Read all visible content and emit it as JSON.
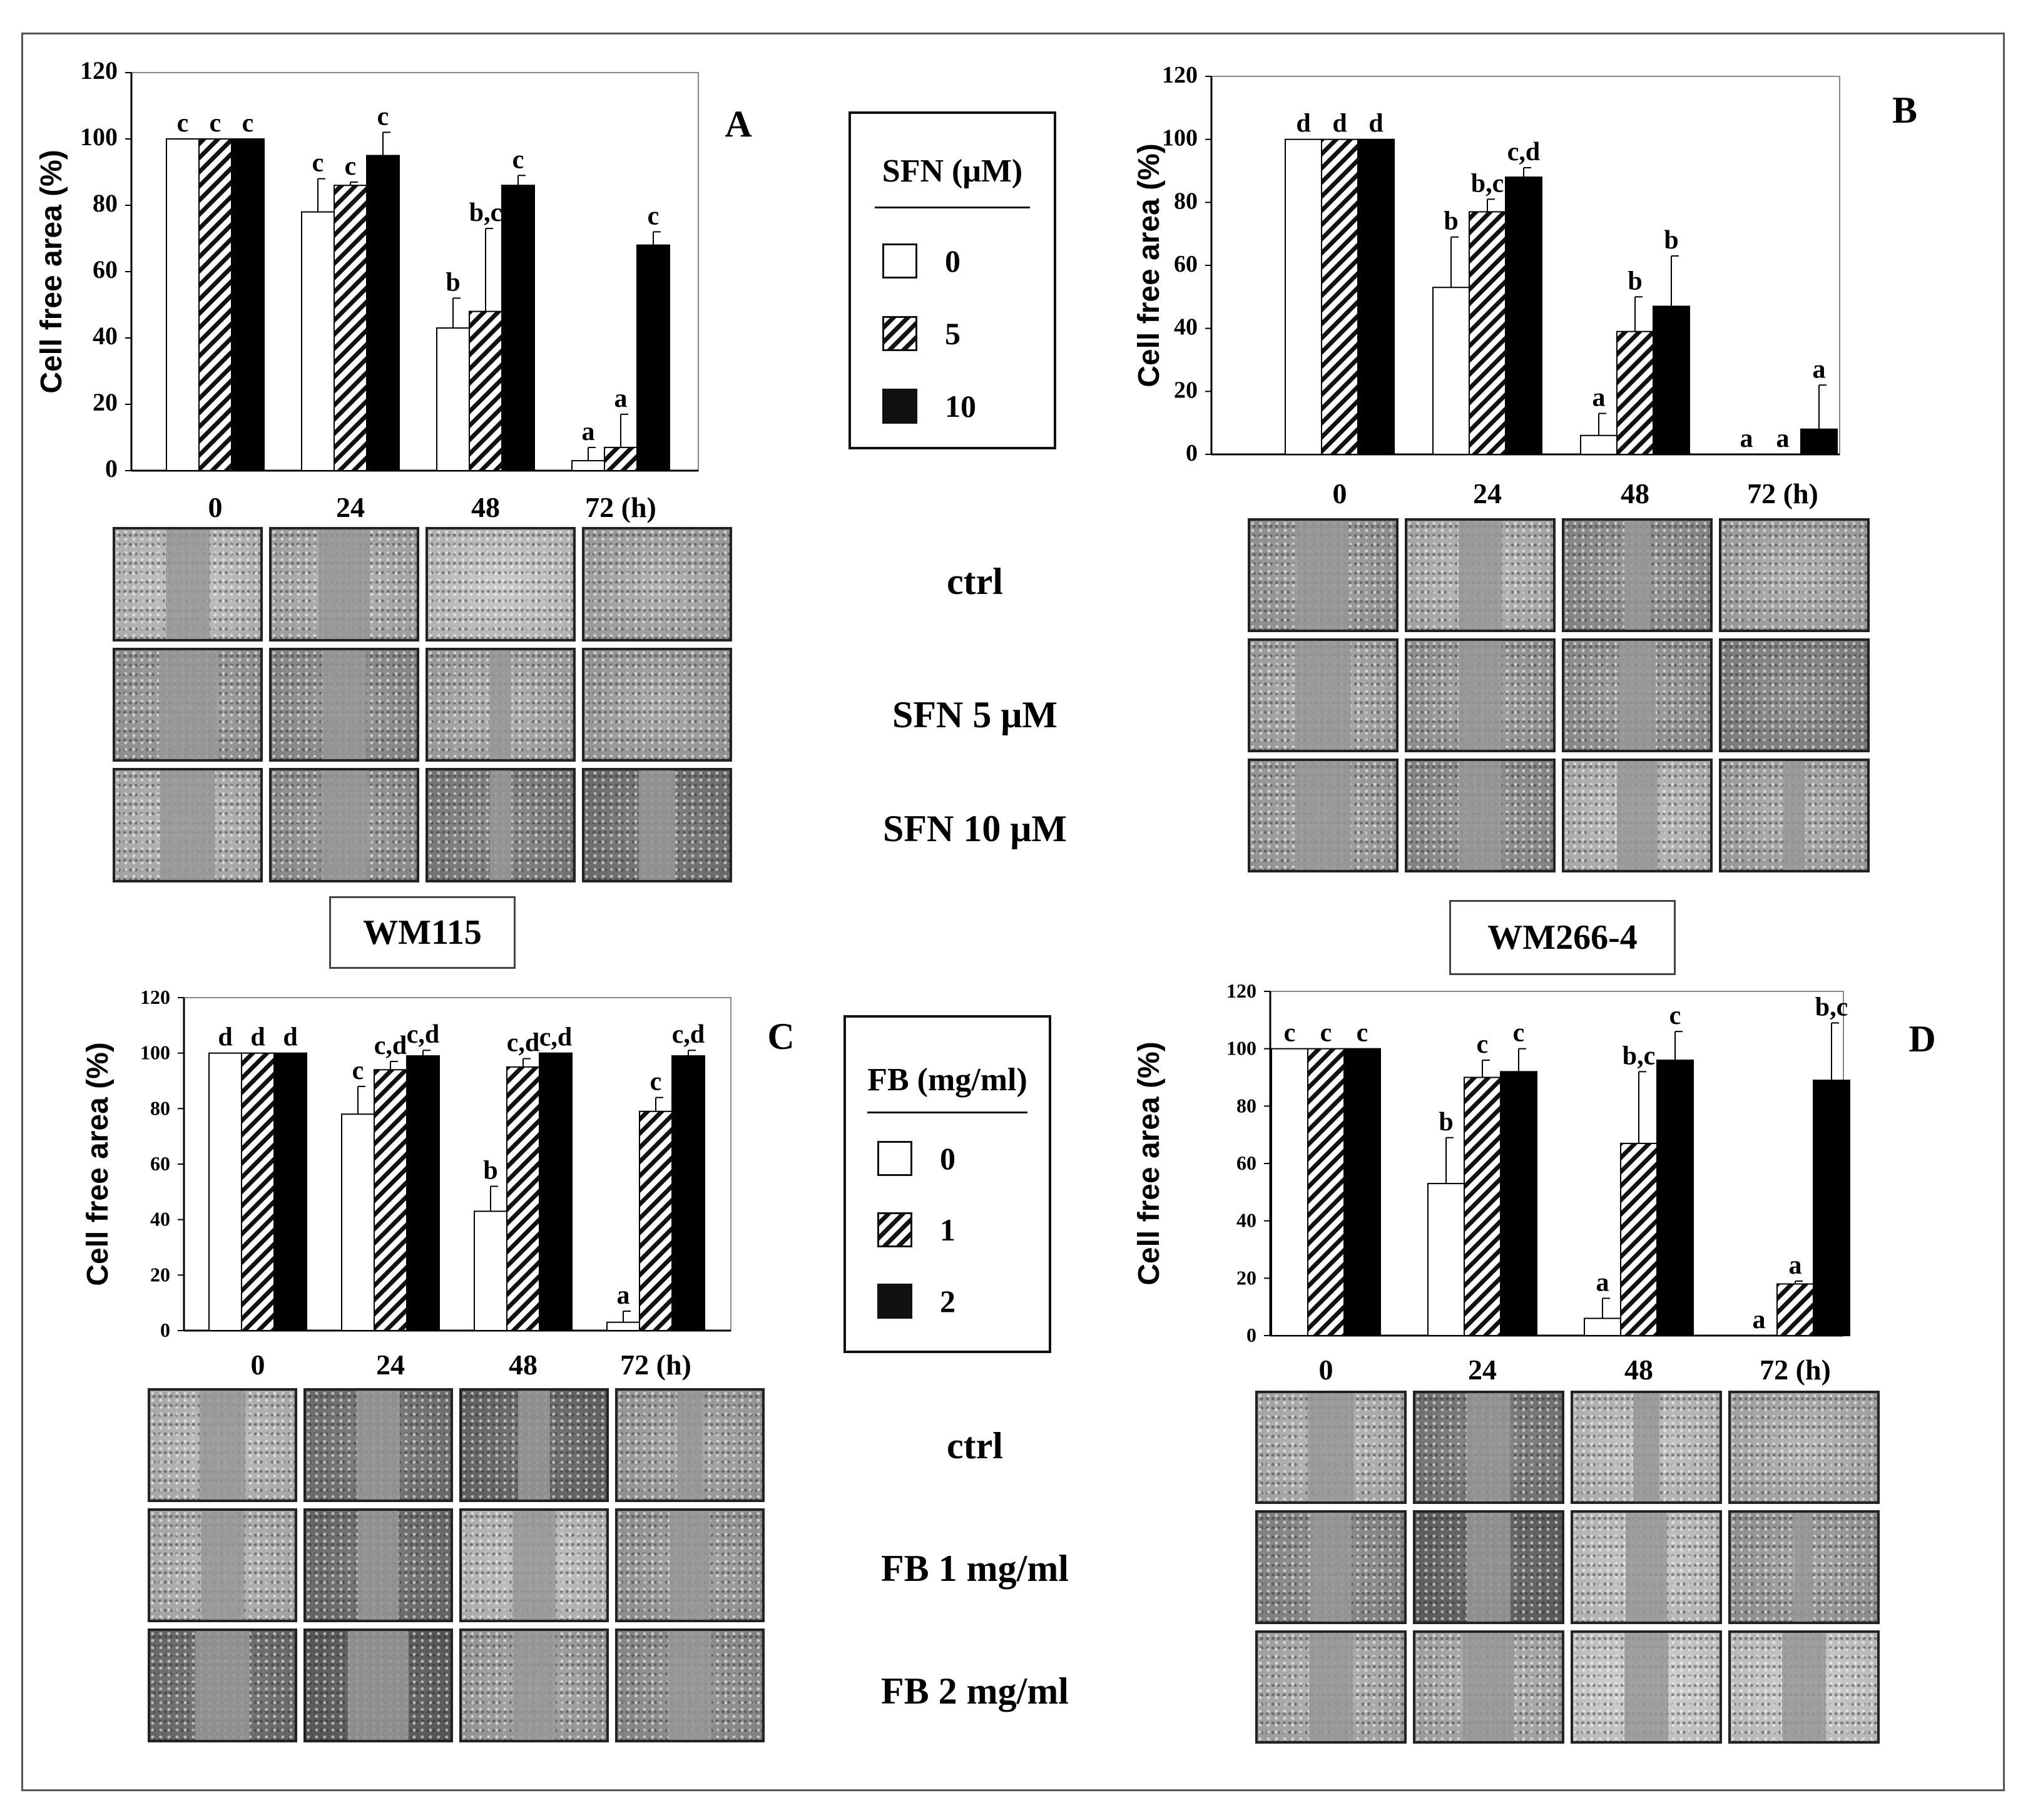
{
  "chart_data": [
    {
      "panel": "A",
      "type": "bar",
      "ylabel": "Cell free area (%)",
      "ylim": [
        0,
        120
      ],
      "yticks": [
        0,
        20,
        40,
        60,
        80,
        100,
        120
      ],
      "categories": [
        "0",
        "24",
        "48",
        "72 (h)"
      ],
      "series": [
        {
          "name": "0",
          "values": [
            100,
            78,
            43,
            3
          ],
          "errors": [
            0,
            10,
            9,
            4
          ],
          "labels": [
            "c",
            "c",
            "b",
            "a"
          ]
        },
        {
          "name": "5",
          "values": [
            100,
            86,
            48,
            7
          ],
          "errors": [
            0,
            1,
            25,
            10
          ],
          "labels": [
            "c",
            "c",
            "b,c",
            "a"
          ]
        },
        {
          "name": "10",
          "values": [
            100,
            95,
            86,
            68
          ],
          "errors": [
            0,
            7,
            3,
            4
          ],
          "labels": [
            "c",
            "c",
            "c",
            "c"
          ]
        }
      ]
    },
    {
      "panel": "B",
      "type": "bar",
      "ylabel": "Cell free area (%)",
      "ylim": [
        0,
        120
      ],
      "yticks": [
        0,
        20,
        40,
        60,
        80,
        100,
        120
      ],
      "categories": [
        "0",
        "24",
        "48",
        "72 (h)"
      ],
      "series": [
        {
          "name": "0",
          "values": [
            100,
            53,
            6,
            0
          ],
          "errors": [
            0,
            16,
            7,
            0
          ],
          "labels": [
            "d",
            "b",
            "a",
            "a"
          ]
        },
        {
          "name": "5",
          "values": [
            100,
            77,
            39,
            0
          ],
          "errors": [
            0,
            4,
            11,
            0
          ],
          "labels": [
            "d",
            "b,c",
            "b",
            "a"
          ]
        },
        {
          "name": "10",
          "values": [
            100,
            88,
            47,
            8
          ],
          "errors": [
            0,
            3,
            16,
            14
          ],
          "labels": [
            "d",
            "c,d",
            "b",
            "a"
          ]
        }
      ]
    },
    {
      "panel": "C",
      "type": "bar",
      "ylabel": "Cell free area (%)",
      "ylim": [
        0,
        120
      ],
      "yticks": [
        0,
        20,
        40,
        60,
        80,
        100,
        120
      ],
      "categories": [
        "0",
        "24",
        "48",
        "72 (h)"
      ],
      "series": [
        {
          "name": "0",
          "values": [
            100,
            78,
            43,
            3
          ],
          "errors": [
            0,
            10,
            9,
            4
          ],
          "labels": [
            "d",
            "c",
            "b",
            "a"
          ]
        },
        {
          "name": "1",
          "values": [
            100,
            94,
            95,
            79
          ],
          "errors": [
            0,
            3,
            3,
            5
          ],
          "labels": [
            "d",
            "c,d",
            "c,d",
            "c"
          ]
        },
        {
          "name": "2",
          "values": [
            100,
            99,
            100,
            99
          ],
          "errors": [
            0,
            2,
            0,
            2
          ],
          "labels": [
            "d",
            "c,d",
            "c,d",
            "c,d"
          ]
        }
      ]
    },
    {
      "panel": "D",
      "type": "bar",
      "ylabel": "Cell free area (%)",
      "ylim": [
        0,
        120
      ],
      "yticks": [
        0,
        20,
        40,
        60,
        80,
        100,
        120
      ],
      "categories": [
        "0",
        "24",
        "48",
        "72 (h)"
      ],
      "series": [
        {
          "name": "0",
          "values": [
            100,
            53,
            6,
            0
          ],
          "errors": [
            0,
            16,
            7,
            0
          ],
          "labels": [
            "c",
            "b",
            "a",
            "a"
          ]
        },
        {
          "name": "1",
          "values": [
            100,
            90,
            67,
            18
          ],
          "errors": [
            0,
            6,
            25,
            1
          ],
          "labels": [
            "c",
            "c",
            "b,c",
            "a"
          ]
        },
        {
          "name": "2",
          "values": [
            100,
            92,
            96,
            89
          ],
          "errors": [
            0,
            8,
            10,
            20
          ],
          "labels": [
            "c",
            "c",
            "c",
            "b,c"
          ]
        }
      ]
    }
  ],
  "legend_sfn": {
    "title": "SFN (μM)",
    "items": [
      "0",
      "5",
      "10"
    ]
  },
  "legend_fb": {
    "title": "FB (mg/ml)",
    "items": [
      "0",
      "1",
      "2"
    ]
  },
  "conditions_top": {
    "ctrl": "ctrl",
    "low": "SFN 5 μM",
    "high": "SFN 10 μM"
  },
  "conditions_bottom": {
    "ctrl": "ctrl",
    "low": "FB 1 mg/ml",
    "high": "FB 2 mg/ml"
  },
  "cell_lines": {
    "left": "WM115",
    "right": "WM266-4"
  }
}
